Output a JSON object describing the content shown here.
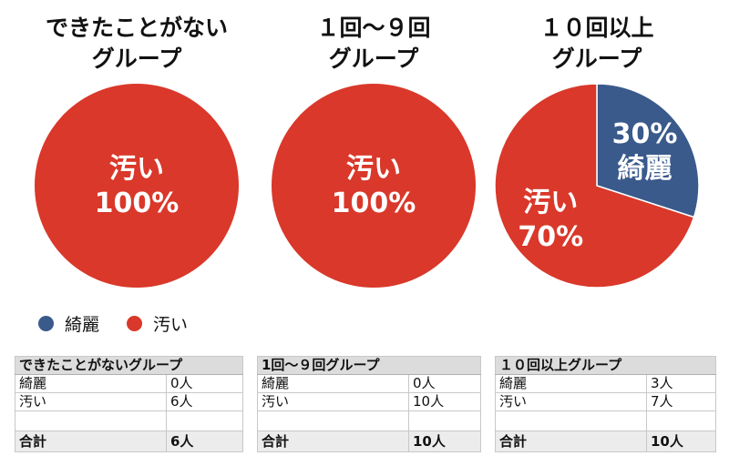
{
  "colors": {
    "clean": "#3a5a8c",
    "dirty": "#d9382a"
  },
  "legend": [
    {
      "label": "綺麗",
      "color": "#3a5a8c"
    },
    {
      "label": "汚い",
      "color": "#d9382a"
    }
  ],
  "chart_data": [
    {
      "type": "pie",
      "title_lines": [
        "できたことがない",
        "グループ"
      ],
      "slices": [
        {
          "label": "綺麗",
          "value": 0,
          "pct_label": "",
          "color": "#3a5a8c"
        },
        {
          "label": "汚い",
          "value": 100,
          "pct_label": "100%",
          "color": "#d9382a"
        }
      ]
    },
    {
      "type": "pie",
      "title_lines": [
        "１回〜９回",
        "グループ"
      ],
      "slices": [
        {
          "label": "綺麗",
          "value": 0,
          "pct_label": "",
          "color": "#3a5a8c"
        },
        {
          "label": "汚い",
          "value": 100,
          "pct_label": "100%",
          "color": "#d9382a"
        }
      ]
    },
    {
      "type": "pie",
      "title_lines": [
        "１０回以上",
        "グループ"
      ],
      "slices": [
        {
          "label": "綺麗",
          "value": 30,
          "pct_label": "30%",
          "color": "#3a5a8c"
        },
        {
          "label": "汚い",
          "value": 70,
          "pct_label": "70%",
          "color": "#d9382a"
        }
      ]
    }
  ],
  "tables": [
    {
      "header": "できたことがないグループ",
      "rows": [
        {
          "label": "綺麗",
          "value": "0人"
        },
        {
          "label": "汚い",
          "value": "6人"
        }
      ],
      "total": {
        "label": "合計",
        "value": "6人"
      }
    },
    {
      "header": "1回〜９回グループ",
      "rows": [
        {
          "label": "綺麗",
          "value": "0人"
        },
        {
          "label": "汚い",
          "value": "10人"
        }
      ],
      "total": {
        "label": "合計",
        "value": "10人"
      }
    },
    {
      "header": "１０回以上グループ",
      "rows": [
        {
          "label": "綺麗",
          "value": "3人"
        },
        {
          "label": "汚い",
          "value": "7人"
        }
      ],
      "total": {
        "label": "合計",
        "value": "10人"
      }
    }
  ]
}
